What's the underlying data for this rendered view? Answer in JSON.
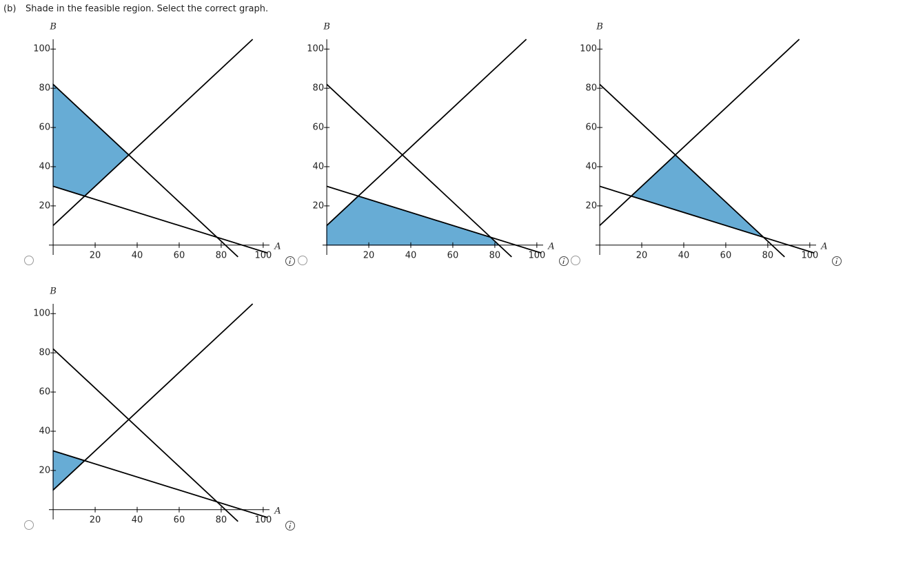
{
  "question": {
    "label": "(b)",
    "text": "Shade in the feasible region. Select the correct graph."
  },
  "chart_data": [
    {
      "type": "line",
      "xlabel": "A",
      "ylabel": "B",
      "xlim": [
        -2,
        103
      ],
      "ylim": [
        -5,
        105
      ],
      "xticks": [
        20,
        40,
        60,
        80,
        100
      ],
      "yticks": [
        20,
        40,
        60,
        80,
        100
      ],
      "series": [
        {
          "color": "#000000",
          "x": [
            0,
            88
          ],
          "values": [
            82,
            -6
          ]
        },
        {
          "color": "#000000",
          "x": [
            0,
            95
          ],
          "values": [
            10,
            105
          ]
        },
        {
          "color": "#000000",
          "x": [
            0,
            102
          ],
          "values": [
            30,
            -4
          ]
        }
      ],
      "region": {
        "color": "#67acd5",
        "x": [
          0,
          36,
          15,
          0
        ],
        "values": [
          82,
          46,
          25,
          30
        ]
      }
    },
    {
      "type": "line",
      "xlabel": "A",
      "ylabel": "B",
      "xlim": [
        -2,
        103
      ],
      "ylim": [
        -5,
        105
      ],
      "xticks": [
        20,
        40,
        60,
        80,
        100
      ],
      "yticks": [
        20,
        40,
        60,
        80,
        100
      ],
      "series": [
        {
          "color": "#000000",
          "x": [
            0,
            88
          ],
          "values": [
            82,
            -6
          ]
        },
        {
          "color": "#000000",
          "x": [
            0,
            95
          ],
          "values": [
            10,
            105
          ]
        },
        {
          "color": "#000000",
          "x": [
            0,
            102
          ],
          "values": [
            30,
            -4
          ]
        }
      ],
      "region": {
        "color": "#67acd5",
        "x": [
          0,
          0,
          15,
          78,
          82
        ],
        "values": [
          0,
          10,
          25,
          4,
          0
        ]
      }
    },
    {
      "type": "line",
      "xlabel": "A",
      "ylabel": "B",
      "xlim": [
        -2,
        103
      ],
      "ylim": [
        -5,
        105
      ],
      "xticks": [
        20,
        40,
        60,
        80,
        100
      ],
      "yticks": [
        20,
        40,
        60,
        80,
        100
      ],
      "series": [
        {
          "color": "#000000",
          "x": [
            0,
            88
          ],
          "values": [
            82,
            -6
          ]
        },
        {
          "color": "#000000",
          "x": [
            0,
            95
          ],
          "values": [
            10,
            105
          ]
        },
        {
          "color": "#000000",
          "x": [
            0,
            102
          ],
          "values": [
            30,
            -4
          ]
        }
      ],
      "region": {
        "color": "#67acd5",
        "x": [
          15,
          36,
          78
        ],
        "values": [
          25,
          46,
          4
        ]
      }
    },
    {
      "type": "line",
      "xlabel": "A",
      "ylabel": "B",
      "xlim": [
        -2,
        103
      ],
      "ylim": [
        -5,
        105
      ],
      "xticks": [
        20,
        40,
        60,
        80,
        100
      ],
      "yticks": [
        20,
        40,
        60,
        80,
        100
      ],
      "series": [
        {
          "color": "#000000",
          "x": [
            0,
            88
          ],
          "values": [
            82,
            -6
          ]
        },
        {
          "color": "#000000",
          "x": [
            0,
            95
          ],
          "values": [
            10,
            105
          ]
        },
        {
          "color": "#000000",
          "x": [
            0,
            102
          ],
          "values": [
            30,
            -4
          ]
        }
      ],
      "region": {
        "color": "#67acd5",
        "x": [
          0,
          15,
          0
        ],
        "values": [
          30,
          25,
          10
        ]
      }
    }
  ]
}
